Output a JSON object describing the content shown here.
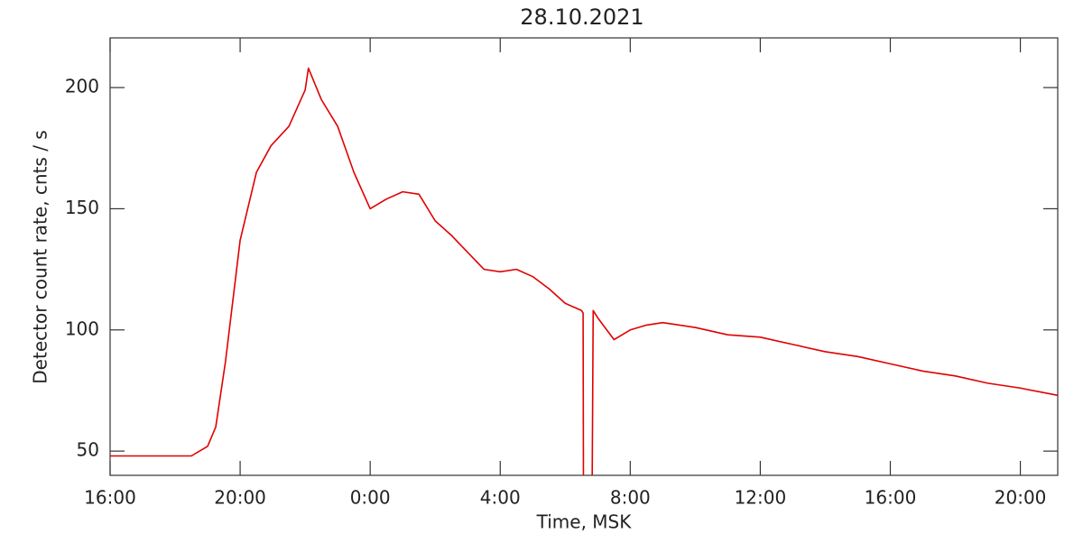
{
  "chart_data": {
    "type": "line",
    "title": "28.10.2021",
    "x_label": "Time, MSK",
    "y_label": "Detector count rate, cnts / s",
    "x": [
      0,
      1,
      2,
      2.5,
      3,
      3.25,
      3.55,
      4,
      4.5,
      4.95,
      5.5,
      6,
      6.1,
      6.5,
      7,
      7.5,
      8,
      8.5,
      9,
      9.5,
      10,
      10.5,
      11,
      11.5,
      12,
      12.5,
      13,
      13.5,
      14,
      14.5,
      14.55,
      14.56,
      14.6,
      14.83,
      14.86,
      15,
      15.5,
      16,
      16.5,
      17,
      18,
      19,
      20,
      21,
      22,
      23,
      24,
      25,
      26,
      27,
      28,
      29.15
    ],
    "series": [
      {
        "name": "count rate",
        "color": "#e00000",
        "values": [
          48,
          48,
          48,
          48,
          52,
          60,
          87,
          137,
          165,
          176,
          184,
          199,
          208,
          195,
          184,
          165,
          150,
          154,
          157,
          156,
          145,
          139,
          132,
          125,
          124,
          125,
          122,
          117,
          111,
          108,
          107,
          40,
          null,
          40,
          108,
          105,
          96,
          100,
          102,
          103,
          101,
          98,
          97,
          94,
          91,
          89,
          86,
          83,
          81,
          78,
          76,
          73
        ]
      }
    ],
    "xlim": [
      0,
      29.15
    ],
    "ylim": [
      40,
      220.5
    ],
    "xticks": [
      {
        "value": 0,
        "label": "16:00"
      },
      {
        "value": 4,
        "label": "20:00"
      },
      {
        "value": 8,
        "label": "0:00"
      },
      {
        "value": 12,
        "label": "4:00"
      },
      {
        "value": 16,
        "label": "8:00"
      },
      {
        "value": 20,
        "label": "12:00"
      },
      {
        "value": 24,
        "label": "16:00"
      },
      {
        "value": 28,
        "label": "20:00"
      }
    ],
    "yticks": [
      50,
      100,
      150,
      200
    ]
  }
}
